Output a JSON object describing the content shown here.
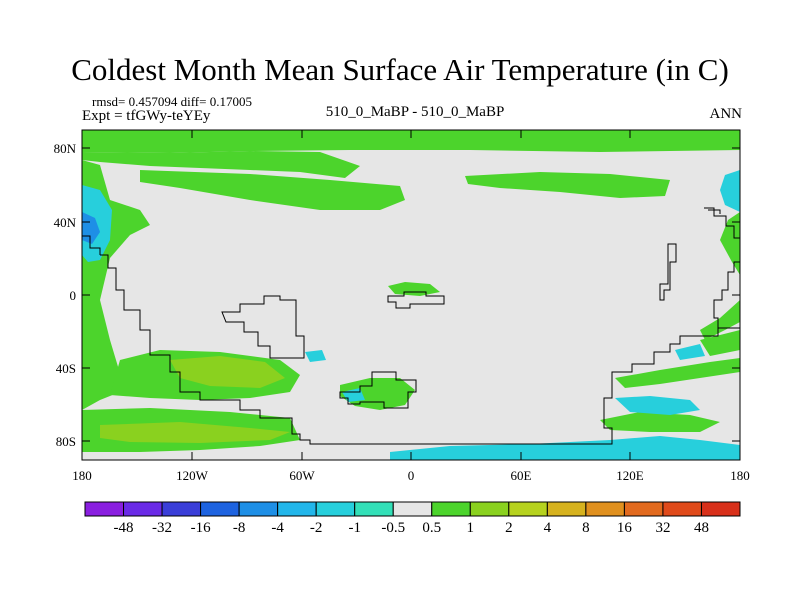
{
  "title": "Coldest Month Mean Surface Air Temperature (in C)",
  "stats": "rmsd= 0.457094 diff= 0.17005",
  "experiment": "Expt = tfGWy-teYEy",
  "comparison": "510_0_MaBP - 510_0_MaBP",
  "period": "ANN",
  "latitude_labels": [
    "80N",
    "40N",
    "0",
    "40S",
    "80S"
  ],
  "longitude_labels": [
    "180",
    "120W",
    "60W",
    "0",
    "60E",
    "120E",
    "180"
  ],
  "colorbar": {
    "labels": [
      "-48",
      "-32",
      "-16",
      "-8",
      "-4",
      "-2",
      "-1",
      "-0.5",
      "0.5",
      "1",
      "2",
      "4",
      "8",
      "16",
      "32",
      "48"
    ],
    "colors": [
      "#8a1fe0",
      "#6a2ae6",
      "#3a3ed8",
      "#1e63e0",
      "#1e8fe6",
      "#22b6ea",
      "#27cfdc",
      "#33e0b8",
      "#e6e6e6",
      "#4cd42c",
      "#8ad11f",
      "#b6d21e",
      "#d6b21e",
      "#e0901e",
      "#e26a1e",
      "#e04a1a",
      "#d8301a"
    ]
  },
  "colors": {
    "neutral": "#e6e6e6",
    "green": "#4cd42c",
    "light_green": "#8ad11f",
    "cyan": "#27cfdc",
    "teal": "#33e0b8",
    "blue": "#1e8fe6"
  }
}
